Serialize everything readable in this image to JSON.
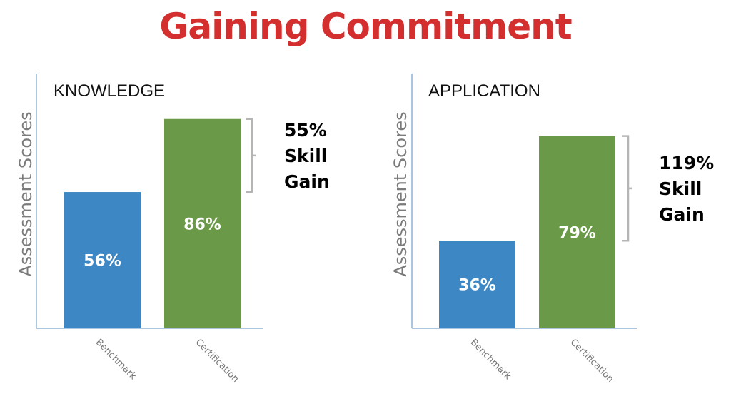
{
  "title": "Gaining Commitment",
  "chart_data": [
    {
      "type": "bar",
      "title": "KNOWLEDGE",
      "ylabel": "Assessment Scores",
      "xlabel": "",
      "categories": [
        "Benchmark",
        "Certification"
      ],
      "values": [
        56,
        86
      ],
      "value_labels": [
        "56%",
        "86%"
      ],
      "colors": [
        "#3d88c4",
        "#6a9a48"
      ],
      "ylim": [
        0,
        100
      ],
      "grid": false,
      "annotation": {
        "lines": [
          "55%",
          "Skill",
          "Gain"
        ],
        "from_value": 56,
        "to_value": 86
      }
    },
    {
      "type": "bar",
      "title": "APPLICATION",
      "ylabel": "Assessment Scores",
      "xlabel": "",
      "categories": [
        "Benchmark",
        "Certification"
      ],
      "values": [
        36,
        79
      ],
      "value_labels": [
        "36%",
        "79%"
      ],
      "colors": [
        "#3d88c4",
        "#6a9a48"
      ],
      "ylim": [
        0,
        100
      ],
      "grid": false,
      "annotation": {
        "lines": [
          "119%",
          "Skill",
          "Gain"
        ],
        "from_value": 36,
        "to_value": 79
      }
    }
  ]
}
